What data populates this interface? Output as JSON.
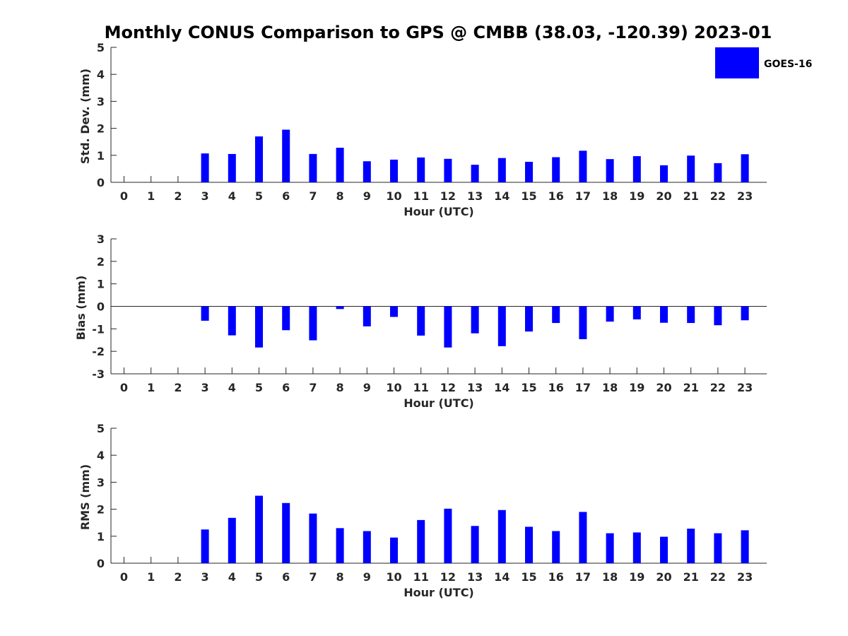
{
  "chart_data": {
    "title": "Monthly CONUS Comparison to GPS @ CMBB (38.03, -120.39) 2023-01",
    "series_color": "#0000ff",
    "legend": {
      "label": "GOES-16",
      "placement": "top-right"
    },
    "panels": [
      {
        "type": "bar",
        "ylabel": "Std. Dev. (mm)",
        "xlabel": "Hour (UTC)",
        "ylim": [
          0,
          5
        ],
        "yticks": [
          0,
          1,
          2,
          3,
          4,
          5
        ],
        "categories": [
          "0",
          "1",
          "2",
          "3",
          "4",
          "5",
          "6",
          "7",
          "8",
          "9",
          "10",
          "11",
          "12",
          "13",
          "14",
          "15",
          "16",
          "17",
          "18",
          "19",
          "20",
          "21",
          "22",
          "23"
        ],
        "values": [
          null,
          null,
          null,
          1.07,
          1.05,
          1.7,
          1.95,
          1.05,
          1.28,
          0.78,
          0.84,
          0.92,
          0.87,
          0.65,
          0.9,
          0.76,
          0.93,
          1.17,
          0.86,
          0.97,
          0.63,
          0.99,
          0.71,
          1.04
        ]
      },
      {
        "type": "bar",
        "ylabel": "Bias (mm)",
        "xlabel": "Hour (UTC)",
        "ylim": [
          -3,
          3
        ],
        "yticks": [
          -3,
          -2,
          -1,
          0,
          1,
          2,
          3
        ],
        "categories": [
          "0",
          "1",
          "2",
          "3",
          "4",
          "5",
          "6",
          "7",
          "8",
          "9",
          "10",
          "11",
          "12",
          "13",
          "14",
          "15",
          "16",
          "17",
          "18",
          "19",
          "20",
          "21",
          "22",
          "23"
        ],
        "values": [
          null,
          null,
          null,
          -0.64,
          -1.29,
          -1.83,
          -1.06,
          -1.51,
          -0.12,
          -0.89,
          -0.47,
          -1.3,
          -1.83,
          -1.2,
          -1.77,
          -1.12,
          -0.74,
          -1.46,
          -0.68,
          -0.58,
          -0.73,
          -0.74,
          -0.84,
          -0.62
        ]
      },
      {
        "type": "bar",
        "ylabel": "RMS (mm)",
        "xlabel": "Hour (UTC)",
        "ylim": [
          0,
          5
        ],
        "yticks": [
          0,
          1,
          2,
          3,
          4,
          5
        ],
        "categories": [
          "0",
          "1",
          "2",
          "3",
          "4",
          "5",
          "6",
          "7",
          "8",
          "9",
          "10",
          "11",
          "12",
          "13",
          "14",
          "15",
          "16",
          "17",
          "18",
          "19",
          "20",
          "21",
          "22",
          "23"
        ],
        "values": [
          null,
          null,
          null,
          1.25,
          1.68,
          2.5,
          2.23,
          1.84,
          1.3,
          1.19,
          0.95,
          1.6,
          2.02,
          1.38,
          1.97,
          1.35,
          1.19,
          1.9,
          1.11,
          1.14,
          0.98,
          1.28,
          1.11,
          1.22
        ]
      }
    ]
  }
}
